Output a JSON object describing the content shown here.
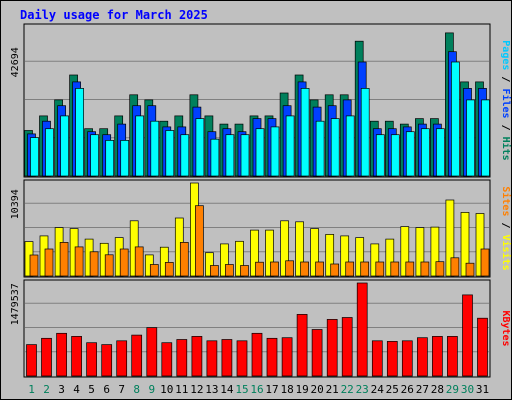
{
  "chart_data": {
    "type": "bar",
    "title": "Daily usage for March 2025",
    "categories": [
      "1",
      "2",
      "3",
      "4",
      "5",
      "6",
      "7",
      "8",
      "9",
      "10",
      "11",
      "12",
      "13",
      "14",
      "15",
      "16",
      "17",
      "18",
      "19",
      "20",
      "21",
      "22",
      "23",
      "24",
      "25",
      "26",
      "27",
      "28",
      "29",
      "30",
      "31"
    ],
    "weekend_days": [
      "1",
      "2",
      "8",
      "9",
      "15",
      "16",
      "22",
      "23",
      "29",
      "30"
    ],
    "panels": [
      {
        "id": "top",
        "max_label": "42694",
        "ymax": 42694,
        "side_labels": [
          {
            "text": "Pages",
            "color": "#00c8ff"
          },
          {
            "text": " / ",
            "color": "#000000"
          },
          {
            "text": "Files",
            "color": "#0040ff"
          },
          {
            "text": " / ",
            "color": "#000000"
          },
          {
            "text": "Hits",
            "color": "#00805c"
          }
        ],
        "series": [
          {
            "name": "Hits",
            "color": "#00805c",
            "values": [
              13050,
              17230,
              21810,
              28930,
              13550,
              13550,
              17230,
              23270,
              21810,
              15690,
              17230,
              23270,
              17230,
              14860,
              14860,
              17230,
              17230,
              23790,
              28930,
              21810,
              23270,
              23270,
              38630,
              15690,
              15690,
              14860,
              16450,
              16450,
              40990,
              26970,
              26970
            ]
          },
          {
            "name": "Files",
            "color": "#0040ff",
            "values": [
              12050,
              15690,
              20140,
              26970,
              12700,
              11840,
              14860,
              20140,
              20140,
              14060,
              14060,
              19740,
              12700,
              13550,
              12700,
              16450,
              16450,
              20140,
              26970,
              19740,
              20140,
              21810,
              32660,
              13550,
              13550,
              14060,
              14860,
              14860,
              35620,
              25100,
              25100
            ]
          },
          {
            "name": "Pages",
            "color": "#00ffff",
            "values": [
              11000,
              13550,
              17230,
              25100,
              11840,
              10190,
              10190,
              17230,
              15690,
              13050,
              11840,
              16450,
              10540,
              11840,
              11840,
              13550,
              14060,
              17230,
              25100,
              15690,
              16450,
              17230,
              25100,
              11840,
              11840,
              12700,
              13550,
              13550,
              32660,
              21810,
              21810
            ]
          }
        ]
      },
      {
        "id": "middle",
        "max_label": "10394",
        "ymax": 10394,
        "side_labels": [
          {
            "text": "Sites",
            "color": "#ff8000"
          },
          {
            "text": " / ",
            "color": "#000000"
          },
          {
            "text": "Visits",
            "color": "#ffff00"
          }
        ],
        "series": [
          {
            "name": "Visits",
            "color": "#ffff00",
            "values": [
              3840,
              4480,
              5410,
              5300,
              4120,
              3650,
              4290,
              6170,
              2360,
              3220,
              6480,
              10394,
              2600,
              3590,
              3880,
              5130,
              5130,
              6170,
              6060,
              5300,
              4650,
              4480,
              4290,
              3590,
              4120,
              5520,
              5410,
              5460,
              8490,
              7110,
              6990
            ]
          },
          {
            "name": "Sites",
            "color": "#ff8000",
            "values": [
              2350,
              3020,
              3760,
              3250,
              2700,
              2370,
              3020,
              3250,
              1290,
              1520,
              3760,
              7860,
              1170,
              1290,
              1170,
              1540,
              1570,
              1700,
              1570,
              1570,
              1340,
              1570,
              1570,
              1570,
              1570,
              1570,
              1570,
              1600,
              2030,
              1430,
              3020
            ]
          }
        ]
      },
      {
        "id": "bottom",
        "max_label": "1479537",
        "ymax": 1479537,
        "side_labels": [
          {
            "text": "KBytes",
            "color": "#ff0000"
          }
        ],
        "series": [
          {
            "name": "KBytes",
            "color": "#ff0000",
            "values": [
              500000,
              600000,
              680000,
              630000,
              530000,
              500000,
              560000,
              650000,
              770000,
              530000,
              580000,
              630000,
              560000,
              580000,
              560000,
              680000,
              600000,
              610000,
              980000,
              740000,
              900000,
              930000,
              1479537,
              560000,
              550000,
              560000,
              610000,
              630000,
              630000,
              1290000,
              920000
            ]
          }
        ]
      }
    ]
  }
}
